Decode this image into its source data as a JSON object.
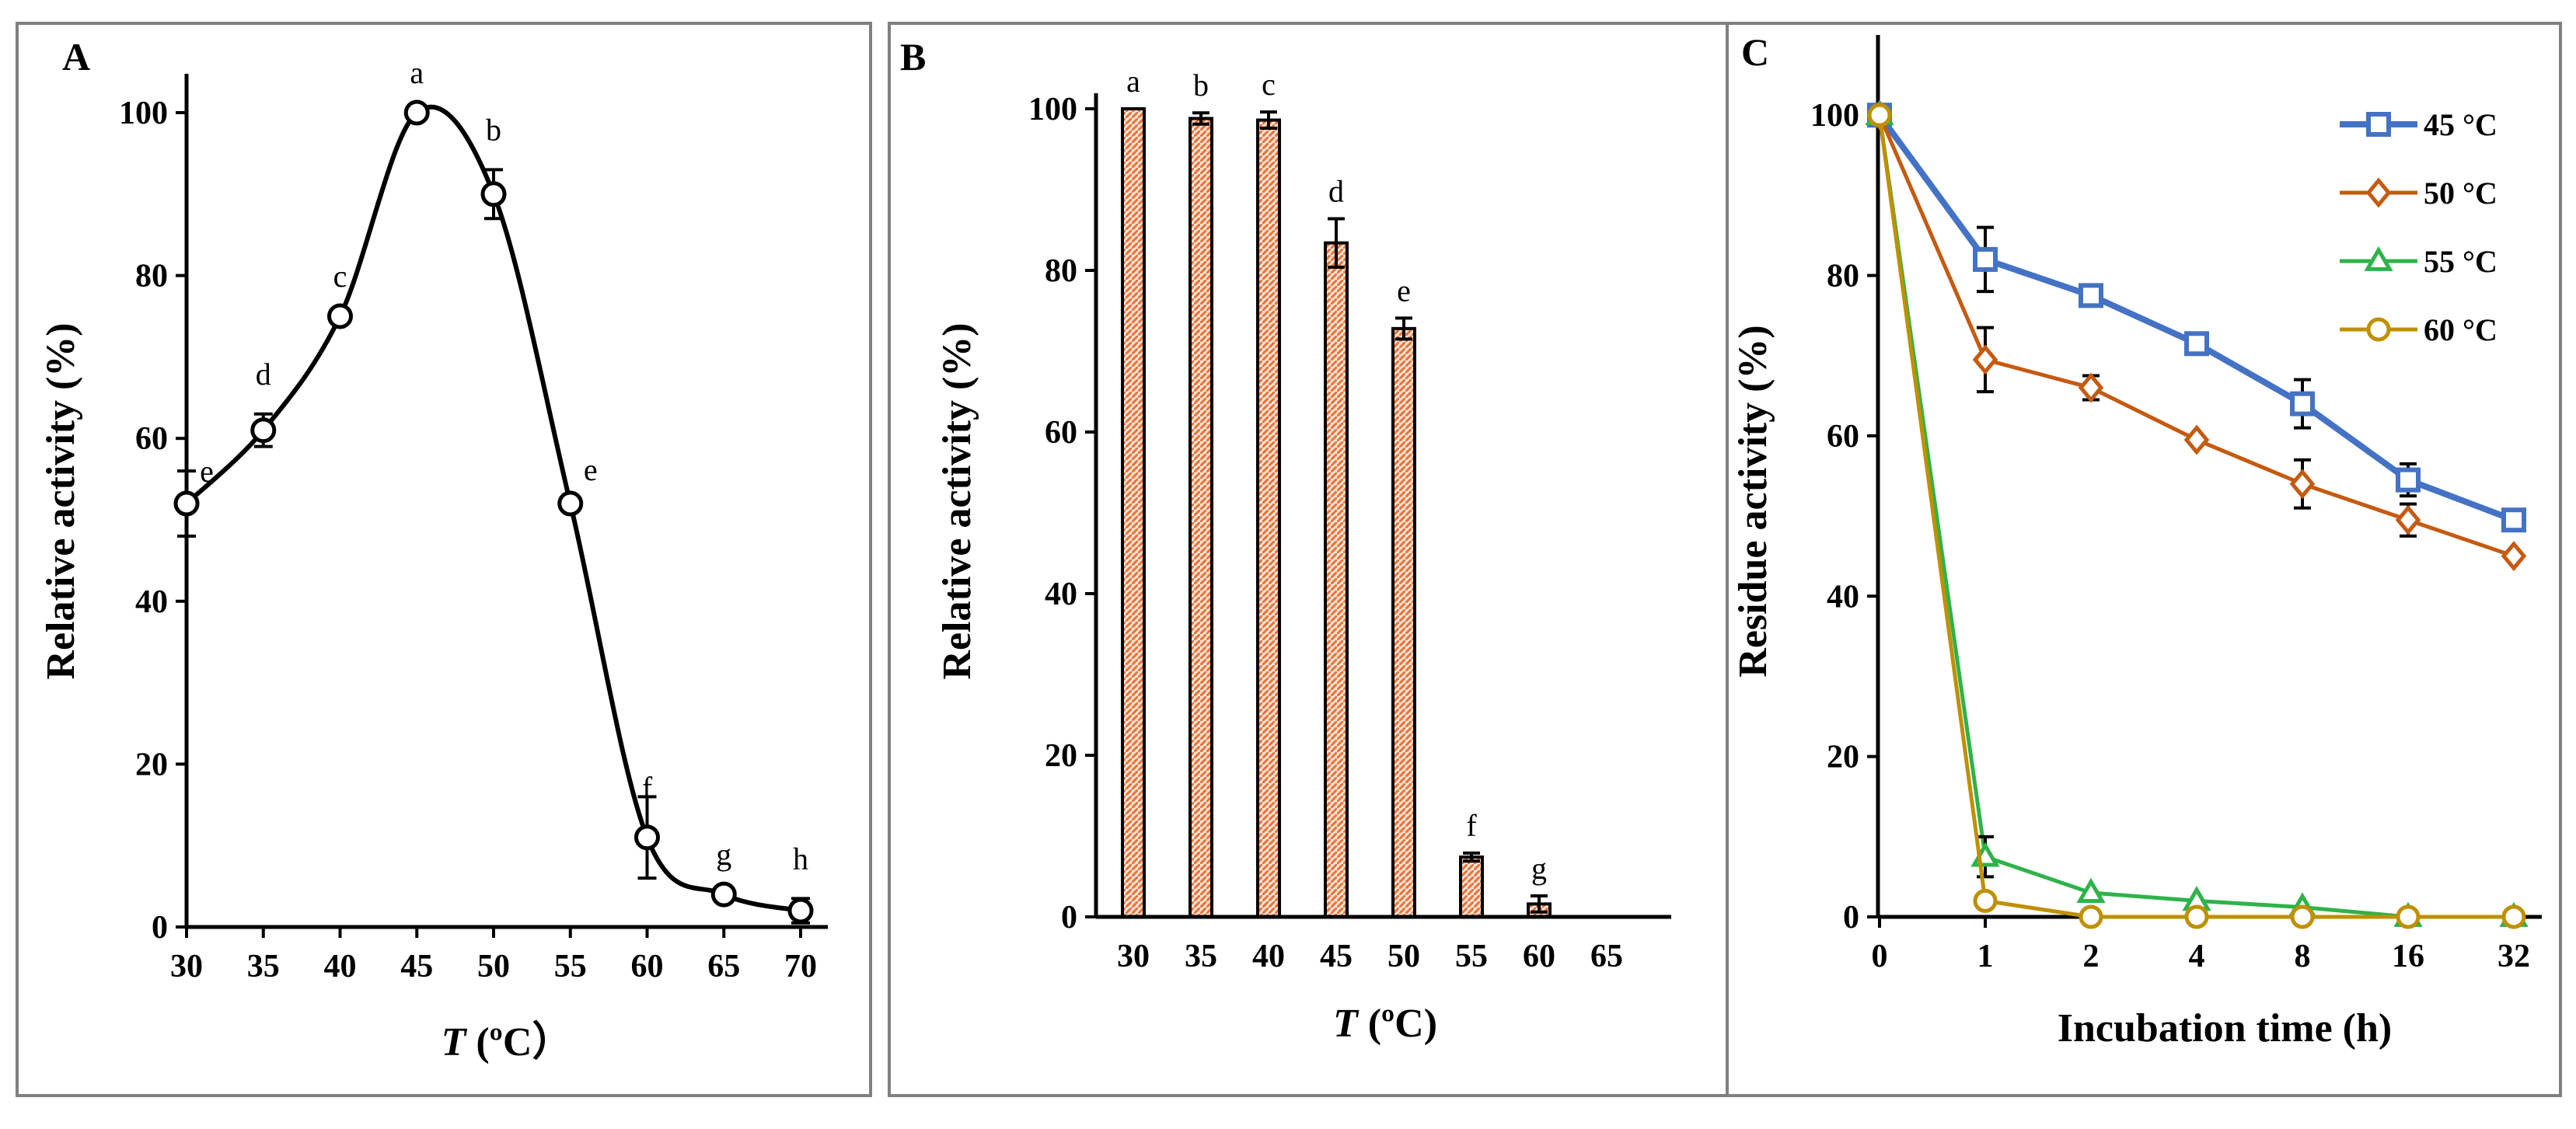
{
  "chart_data": [
    {
      "panel": "A",
      "type": "line",
      "xlabel_italic": "T",
      "xlabel_rest": " (ºC）",
      "ylabel": "Relative activity (%)",
      "xlim": [
        30,
        70
      ],
      "ylim": [
        0,
        100
      ],
      "xticks": [
        "30",
        "35",
        "40",
        "45",
        "50",
        "55",
        "60",
        "65",
        "70"
      ],
      "yticks": [
        "0",
        "20",
        "40",
        "60",
        "80",
        "100"
      ],
      "series": [
        {
          "name": "Relative activity",
          "x": [
            30,
            35,
            40,
            45,
            50,
            55,
            60,
            65,
            70
          ],
          "values": [
            52,
            61,
            75,
            100,
            90,
            52,
            11,
            4,
            2
          ],
          "errors": [
            4,
            2,
            0,
            0,
            3,
            0,
            5,
            0,
            1.5
          ],
          "labels": [
            "e",
            "d",
            "c",
            "a",
            "b",
            "e",
            "f",
            "g",
            "h"
          ],
          "color": "#000000",
          "marker": "circle"
        }
      ]
    },
    {
      "panel": "B",
      "type": "bar",
      "xlabel_italic": "T",
      "xlabel_rest": " (ºC)",
      "ylabel": "Relative activity (%)",
      "ylim": [
        0,
        100
      ],
      "categories": [
        "30",
        "35",
        "40",
        "45",
        "50",
        "55",
        "60",
        "65"
      ],
      "yticks": [
        "0",
        "20",
        "40",
        "60",
        "80",
        "100"
      ],
      "series": [
        {
          "name": "Relative activity",
          "values": [
            100,
            98.8,
            98.6,
            83.4,
            72.8,
            7.4,
            1.6,
            null
          ],
          "errors": [
            0,
            0.7,
            1,
            3,
            1.3,
            0.5,
            1,
            null
          ],
          "labels": [
            "a",
            "b",
            "c",
            "d",
            "e",
            "f",
            "g",
            ""
          ],
          "color": "#e8733a"
        }
      ]
    },
    {
      "panel": "C",
      "type": "line",
      "xlabel": "Incubation time (h)",
      "ylabel": "Residue activity (%)",
      "ylim": [
        0,
        110
      ],
      "categories": [
        "0",
        "1",
        "2",
        "4",
        "8",
        "16",
        "32"
      ],
      "yticks": [
        "0",
        "20",
        "40",
        "60",
        "80",
        "100"
      ],
      "legend_position": "top-right",
      "series": [
        {
          "name": "45 °C",
          "values": [
            100,
            82,
            77.5,
            71.5,
            64,
            54.5,
            49.5
          ],
          "errors": [
            0,
            4,
            0,
            0,
            3,
            2,
            0
          ],
          "color": "#4472c4",
          "marker": "square"
        },
        {
          "name": "50 °C",
          "values": [
            100,
            69.5,
            66,
            59.5,
            54,
            49.5,
            45
          ],
          "errors": [
            0,
            4,
            1.5,
            0,
            3,
            2,
            0
          ],
          "color": "#c55a11",
          "marker": "diamond"
        },
        {
          "name": "55 °C",
          "values": [
            100,
            7.5,
            3,
            2,
            1.2,
            0,
            0
          ],
          "errors": [
            0,
            2.5,
            0,
            0,
            0,
            0,
            0
          ],
          "color": "#2eb34a",
          "marker": "triangle"
        },
        {
          "name": "60 °C",
          "values": [
            100,
            2,
            0,
            0,
            0,
            0,
            0
          ],
          "errors": [
            0,
            0,
            0,
            0,
            0,
            0,
            0
          ],
          "color": "#bf9000",
          "marker": "circle"
        }
      ]
    }
  ]
}
